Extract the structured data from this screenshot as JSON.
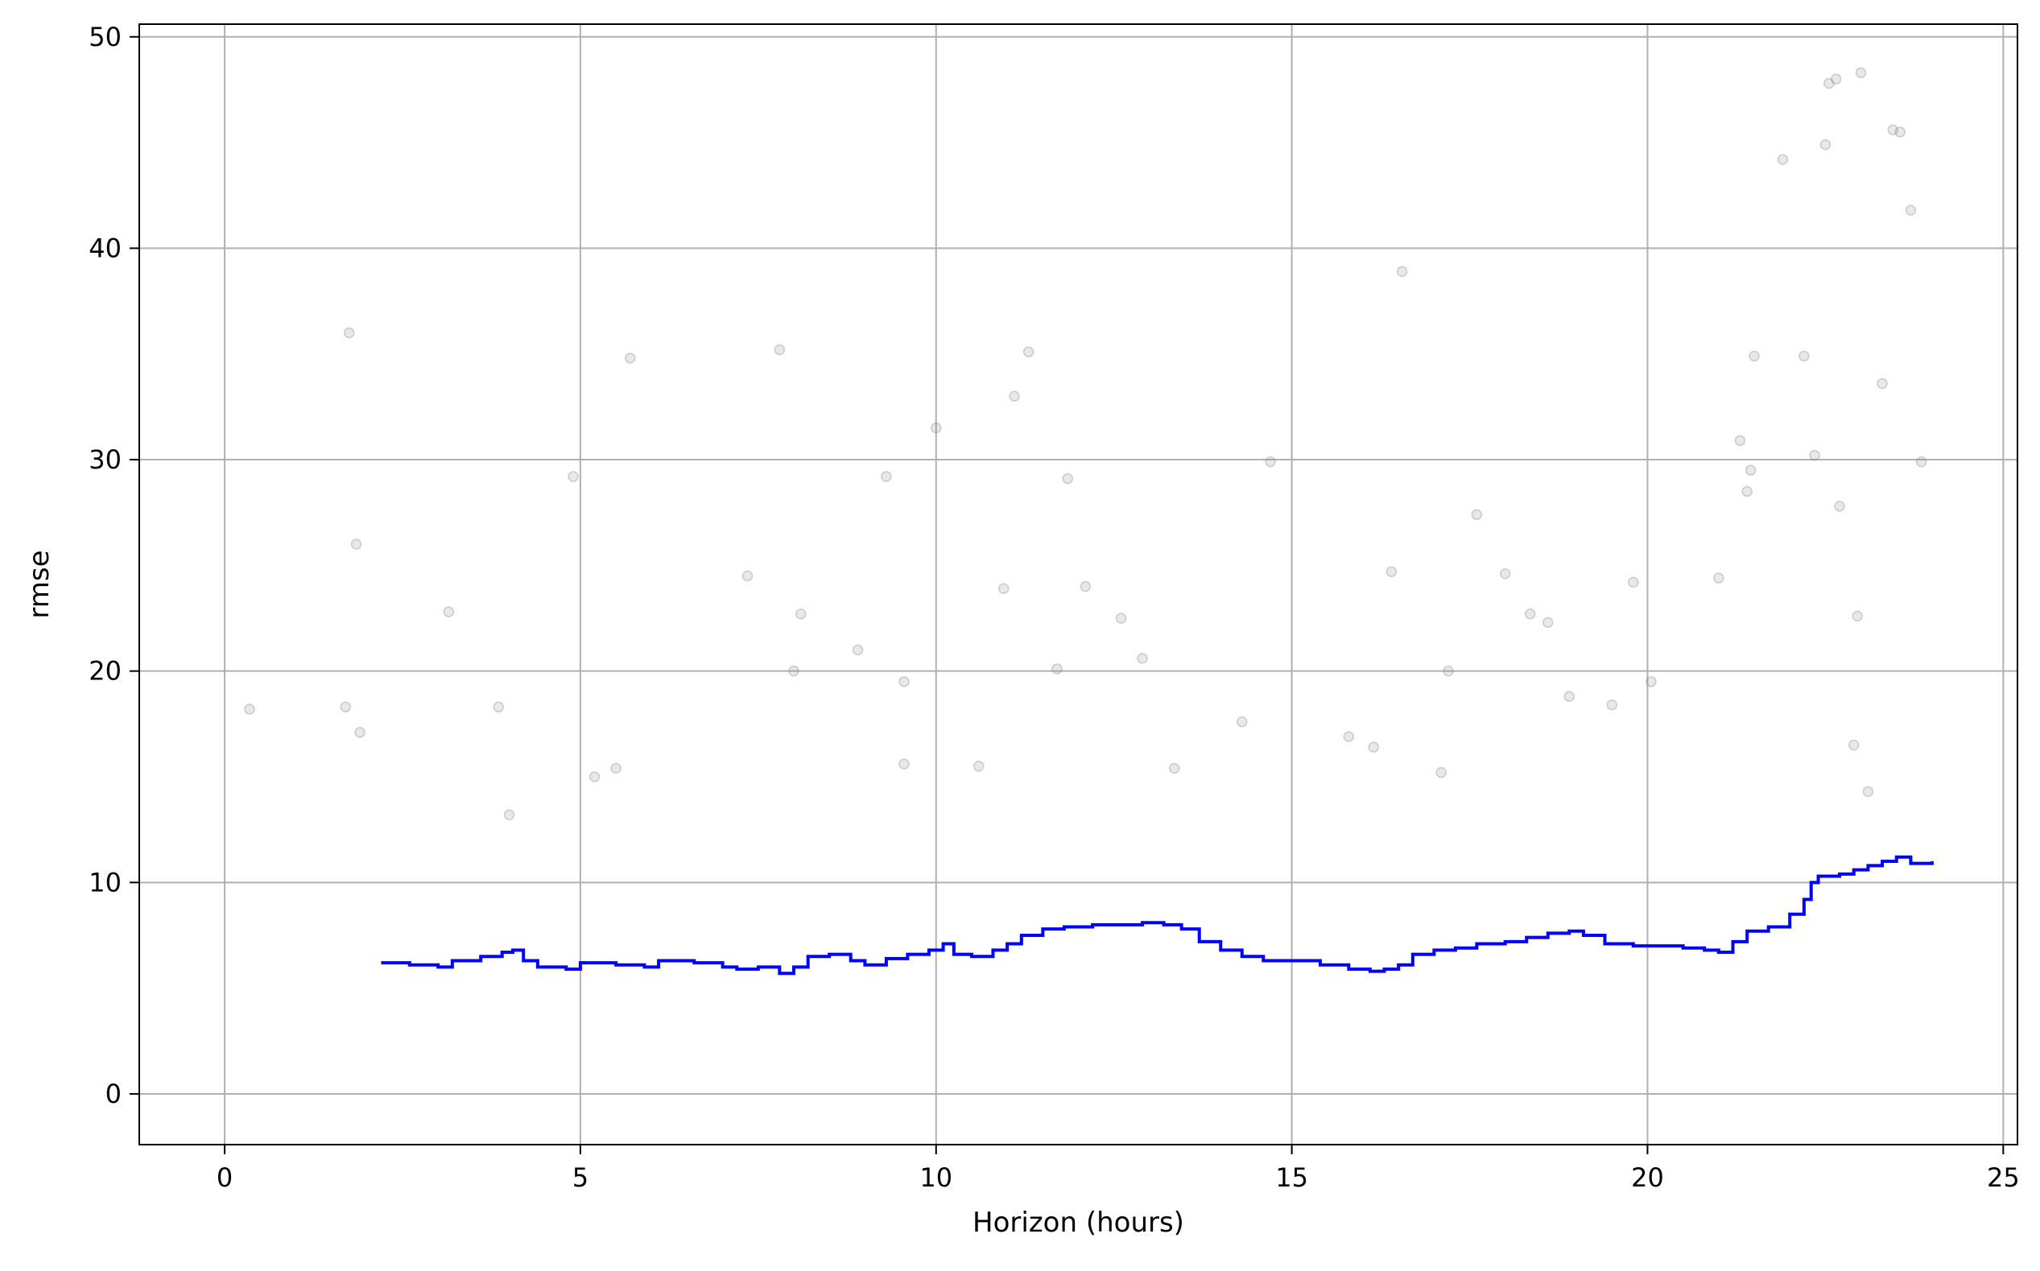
{
  "chart_data": {
    "type": "scatter",
    "title": "",
    "xlabel": "Horizon (hours)",
    "ylabel": "rmse",
    "xlim": [
      -1.2,
      25.2
    ],
    "ylim": [
      -2.4,
      50.6
    ],
    "xticks": [
      0,
      5,
      10,
      15,
      20,
      25
    ],
    "xtick_labels": [
      "0",
      "5",
      "10",
      "15",
      "20",
      "25"
    ],
    "yticks": [
      0,
      10,
      20,
      30,
      40,
      50
    ],
    "ytick_labels": [
      "0",
      "10",
      "20",
      "30",
      "40",
      "50"
    ],
    "grid": true,
    "legend": "none",
    "colors": {
      "points": "#808080",
      "line": "#0000ff",
      "grid": "#b0b0b0",
      "axes": "#000000"
    },
    "series": [
      {
        "kind": "scatter",
        "x": [
          1.75,
          5.7,
          7.8,
          10.0,
          11.3,
          11.1,
          16.55,
          9.3,
          4.9,
          3.15,
          1.85,
          7.35,
          8.1,
          8.9,
          9.55,
          11.85,
          10.95,
          12.6,
          12.1,
          14.7,
          16.4,
          17.6,
          18.0,
          18.35,
          18.6,
          19.8,
          21.3,
          21.4,
          21.0,
          22.35,
          21.45,
          22.2,
          22.5,
          22.55,
          22.65,
          22.95,
          23.0,
          23.3,
          23.45,
          23.55,
          23.7,
          23.85,
          23.1,
          22.9,
          22.7,
          21.9,
          21.5,
          12.9,
          11.7,
          8.0,
          3.85,
          1.7,
          1.9,
          0.35,
          5.2,
          5.5,
          4.0,
          13.35,
          9.55,
          10.6,
          14.3,
          16.15,
          20.05,
          19.5,
          17.2,
          18.9,
          17.1,
          15.8
        ],
        "y": [
          36.0,
          34.8,
          35.2,
          31.5,
          35.1,
          33.0,
          38.9,
          29.2,
          29.2,
          22.8,
          26.0,
          24.5,
          22.7,
          21.0,
          19.5,
          29.1,
          23.9,
          22.5,
          24.0,
          29.9,
          24.7,
          27.4,
          24.6,
          22.7,
          22.3,
          24.2,
          30.9,
          28.5,
          24.4,
          30.2,
          29.5,
          34.9,
          44.9,
          47.8,
          48.0,
          22.6,
          48.3,
          33.6,
          45.6,
          45.5,
          41.8,
          29.9,
          14.3,
          16.5,
          27.8,
          44.2,
          34.9,
          20.6,
          20.1,
          20.0,
          18.3,
          18.3,
          17.1,
          18.2,
          15.0,
          15.4,
          13.2,
          15.4,
          15.6,
          15.5,
          17.6,
          16.4,
          19.5,
          18.4,
          20.0,
          18.8,
          15.2,
          16.9
        ]
      },
      {
        "kind": "line",
        "x": [
          2.2,
          2.6,
          3.0,
          3.2,
          3.6,
          3.9,
          4.05,
          4.2,
          4.4,
          4.8,
          5.0,
          5.5,
          5.9,
          6.1,
          6.6,
          7.0,
          7.2,
          7.5,
          7.8,
          8.0,
          8.2,
          8.5,
          8.8,
          9.0,
          9.3,
          9.6,
          9.9,
          10.1,
          10.25,
          10.5,
          10.8,
          11.0,
          11.2,
          11.5,
          11.8,
          12.0,
          12.2,
          12.6,
          12.9,
          13.2,
          13.45,
          13.7,
          14.0,
          14.3,
          14.6,
          15.0,
          15.4,
          15.8,
          16.1,
          16.3,
          16.5,
          16.7,
          17.0,
          17.3,
          17.6,
          18.0,
          18.3,
          18.6,
          18.9,
          19.1,
          19.4,
          19.8,
          20.2,
          20.5,
          20.8,
          21.0,
          21.2,
          21.4,
          21.7,
          22.0,
          22.2,
          22.3,
          22.4,
          22.7,
          22.9,
          23.1,
          23.3,
          23.5,
          23.7,
          24.0
        ],
        "y": [
          6.2,
          6.1,
          6.0,
          6.3,
          6.5,
          6.7,
          6.8,
          6.3,
          6.0,
          5.9,
          6.2,
          6.1,
          6.0,
          6.3,
          6.2,
          6.0,
          5.9,
          6.0,
          5.7,
          6.0,
          6.5,
          6.6,
          6.3,
          6.1,
          6.4,
          6.6,
          6.8,
          7.1,
          6.6,
          6.5,
          6.8,
          7.1,
          7.5,
          7.8,
          7.9,
          7.9,
          8.0,
          8.0,
          8.1,
          8.0,
          7.8,
          7.2,
          6.8,
          6.5,
          6.3,
          6.3,
          6.1,
          5.9,
          5.8,
          5.9,
          6.1,
          6.6,
          6.8,
          6.9,
          7.1,
          7.2,
          7.4,
          7.6,
          7.7,
          7.5,
          7.1,
          7.0,
          7.0,
          6.9,
          6.8,
          6.7,
          7.2,
          7.7,
          7.9,
          8.5,
          9.2,
          10.0,
          10.3,
          10.4,
          10.6,
          10.8,
          11.0,
          11.2,
          10.9,
          11.0
        ]
      }
    ]
  }
}
